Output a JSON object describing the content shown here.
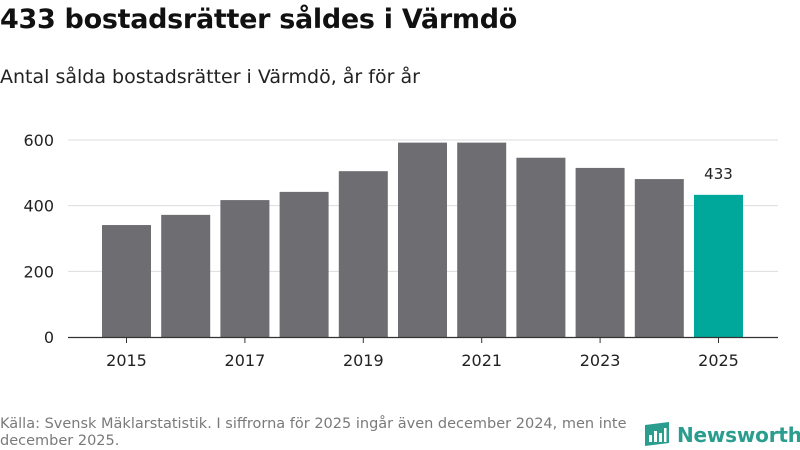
{
  "title": "433 bostadsrätter såldes i Värmdö",
  "subtitle": "Antal sålda bostadsrätter i Värmdö, år för år",
  "footnote": "Källa: Svensk Mäklarstatistik. I siffrorna för 2025 ingår även december 2024, men inte december 2025.",
  "brand": {
    "name": "Newsworthy",
    "icon": "newsworthy-logo-icon"
  },
  "colors": {
    "bar": "#6d6d72",
    "highlight": "#00a89c",
    "grid": "#dddddd",
    "axis": "#333333",
    "brand": "#2a9d8f"
  },
  "chart_data": {
    "type": "bar",
    "title": "433 bostadsrätter såldes i Värmdö",
    "subtitle": "Antal sålda bostadsrätter i Värmdö, år för år",
    "xlabel": "",
    "ylabel": "",
    "categories": [
      "2015",
      "2016",
      "2017",
      "2018",
      "2019",
      "2020",
      "2021",
      "2022",
      "2023",
      "2024",
      "2025"
    ],
    "values": [
      341,
      372,
      417,
      442,
      505,
      592,
      592,
      546,
      515,
      481,
      433
    ],
    "ylim": [
      0,
      600
    ],
    "yticks": [
      0,
      200,
      400,
      600
    ],
    "xtick_labels": [
      "2015",
      "2017",
      "2019",
      "2021",
      "2023",
      "2025"
    ],
    "highlight_category": "2025",
    "value_labels": [
      {
        "category": "2025",
        "text": "433"
      }
    ],
    "grid": true
  }
}
